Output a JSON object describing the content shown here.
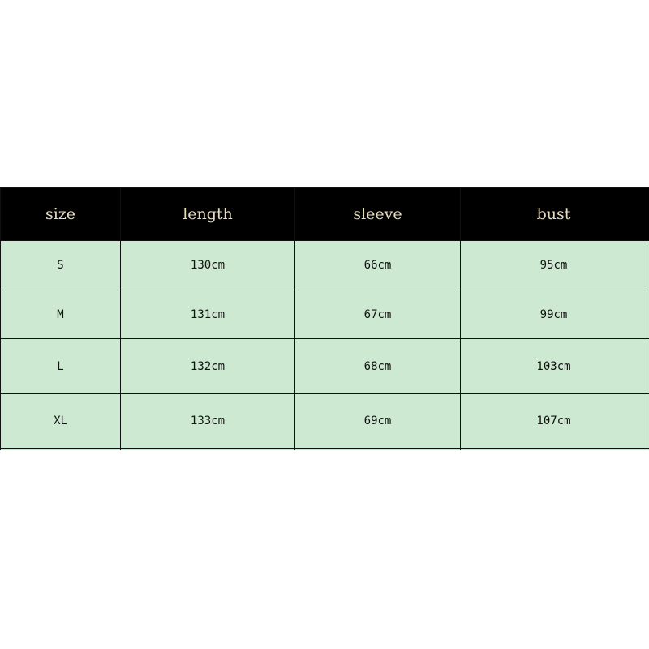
{
  "table": {
    "headers": [
      "size",
      "length",
      "sleeve",
      "bust"
    ],
    "rows": [
      [
        "S",
        "130cm",
        "66cm",
        "95cm"
      ],
      [
        "M",
        "131cm",
        "67cm",
        "99cm"
      ],
      [
        "L",
        "132cm",
        "68cm",
        "103cm"
      ],
      [
        "XL",
        "133cm",
        "69cm",
        "107cm"
      ]
    ]
  },
  "colors": {
    "header_bg": "#000000",
    "header_text": "#e6dcc0",
    "cell_bg": "#cde9d1"
  }
}
